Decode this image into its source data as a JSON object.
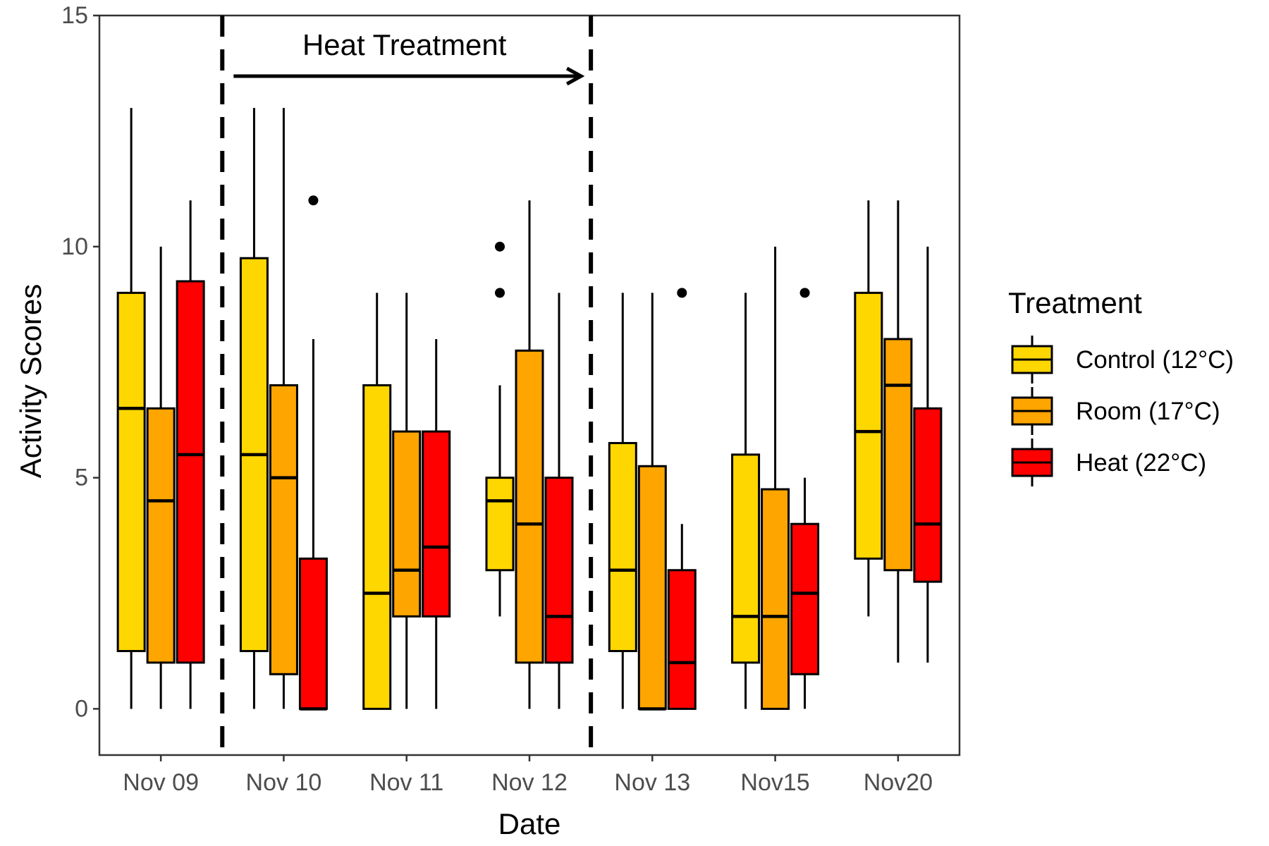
{
  "chart_data": {
    "type": "boxplot",
    "xlabel": "Date",
    "ylabel": "Activity Scores",
    "ylim": [
      -1,
      15
    ],
    "yticks": [
      0,
      5,
      10,
      15
    ],
    "categories": [
      "Nov 09",
      "Nov 10",
      "Nov 11",
      "Nov 12",
      "Nov 13",
      "Nov15",
      "Nov20"
    ],
    "legend": {
      "title": "Treatment",
      "position": "right",
      "entries": [
        "Control (12°C)",
        "Room (17°C)",
        "Heat (22°C)"
      ]
    },
    "colors": {
      "Control (12°C)": "#FFD700",
      "Room (17°C)": "#FFA500",
      "Heat (22°C)": "#FF0000"
    },
    "grid": false,
    "annotation": {
      "text": "Heat Treatment",
      "arrow_from_category": 1,
      "arrow_to_category": 3,
      "dashed_lines_between": [
        [
          0,
          1
        ],
        [
          3,
          4
        ]
      ]
    },
    "series": [
      {
        "name": "Control (12°C)",
        "boxes": [
          {
            "min": 0,
            "q1": 1.25,
            "median": 6.5,
            "q3": 9,
            "max": 13,
            "outliers": []
          },
          {
            "min": 0,
            "q1": 1.25,
            "median": 5.5,
            "q3": 9.75,
            "max": 13,
            "outliers": []
          },
          {
            "min": 0,
            "q1": 0,
            "median": 2.5,
            "q3": 7,
            "max": 9,
            "outliers": []
          },
          {
            "min": 2,
            "q1": 3,
            "median": 4.5,
            "q3": 5,
            "max": 7,
            "outliers": [
              9,
              10
            ]
          },
          {
            "min": 0,
            "q1": 1.25,
            "median": 3,
            "q3": 5.75,
            "max": 9,
            "outliers": []
          },
          {
            "min": 0,
            "q1": 1,
            "median": 2,
            "q3": 5.5,
            "max": 9,
            "outliers": []
          },
          {
            "min": 2,
            "q1": 3.25,
            "median": 6,
            "q3": 9,
            "max": 11,
            "outliers": []
          }
        ]
      },
      {
        "name": "Room (17°C)",
        "boxes": [
          {
            "min": 0,
            "q1": 1,
            "median": 4.5,
            "q3": 6.5,
            "max": 10,
            "outliers": []
          },
          {
            "min": 0,
            "q1": 0.75,
            "median": 5,
            "q3": 7,
            "max": 13,
            "outliers": []
          },
          {
            "min": 0,
            "q1": 2,
            "median": 3,
            "q3": 6,
            "max": 9,
            "outliers": []
          },
          {
            "min": 0,
            "q1": 1,
            "median": 4,
            "q3": 7.75,
            "max": 11,
            "outliers": []
          },
          {
            "min": 0,
            "q1": 0,
            "median": 0,
            "q3": 5.25,
            "max": 9,
            "outliers": []
          },
          {
            "min": 0,
            "q1": 0,
            "median": 2,
            "q3": 4.75,
            "max": 10,
            "outliers": []
          },
          {
            "min": 1,
            "q1": 3,
            "median": 7,
            "q3": 8,
            "max": 11,
            "outliers": []
          }
        ]
      },
      {
        "name": "Heat (22°C)",
        "boxes": [
          {
            "min": 0,
            "q1": 1,
            "median": 5.5,
            "q3": 9.25,
            "max": 11,
            "outliers": []
          },
          {
            "min": 0,
            "q1": 0,
            "median": 0,
            "q3": 3.25,
            "max": 8,
            "outliers": [
              11
            ]
          },
          {
            "min": 0,
            "q1": 2,
            "median": 3.5,
            "q3": 6,
            "max": 8,
            "outliers": []
          },
          {
            "min": 0,
            "q1": 1,
            "median": 2,
            "q3": 5,
            "max": 9,
            "outliers": []
          },
          {
            "min": 0,
            "q1": 0,
            "median": 1,
            "q3": 3,
            "max": 4,
            "outliers": [
              9
            ]
          },
          {
            "min": 0,
            "q1": 0.75,
            "median": 2.5,
            "q3": 4,
            "max": 5,
            "outliers": [
              9
            ]
          },
          {
            "min": 1,
            "q1": 2.75,
            "median": 4,
            "q3": 6.5,
            "max": 10,
            "outliers": []
          }
        ]
      }
    ]
  }
}
